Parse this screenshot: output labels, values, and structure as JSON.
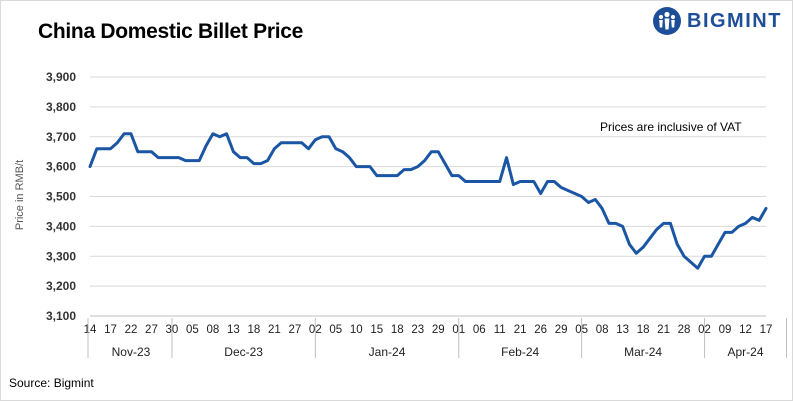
{
  "header": {
    "title": "China Domestic Billet Price",
    "logo_text": "BIGMINT"
  },
  "footer": {
    "source": "Source: Bigmint"
  },
  "colors": {
    "line": "#1a56a4",
    "brand": "#1f4e99",
    "grid": "#d9d9d9"
  },
  "icons": {
    "logo": "people-group-logo-icon"
  },
  "chart_data": {
    "type": "line",
    "title": "China Domestic Billet Price",
    "ylabel": "Price in RMB/t",
    "ylim": [
      3100,
      3900
    ],
    "yticks": [
      3100,
      3200,
      3300,
      3400,
      3500,
      3600,
      3700,
      3800,
      3900
    ],
    "ytick_labels": [
      "3,100",
      "3,200",
      "3,300",
      "3,400",
      "3,500",
      "3,600",
      "3,700",
      "3,800",
      "3,900"
    ],
    "grid": "horizontal",
    "annotation": "Prices are inclusive of VAT",
    "xtick_labels": [
      "14",
      "17",
      "22",
      "27",
      "30",
      "05",
      "08",
      "13",
      "18",
      "21",
      "27",
      "02",
      "05",
      "10",
      "15",
      "18",
      "23",
      "29",
      "01",
      "06",
      "11",
      "21",
      "26",
      "29",
      "05",
      "08",
      "13",
      "18",
      "21",
      "28",
      "02",
      "09",
      "12",
      "17"
    ],
    "months": [
      {
        "label": "Nov-23",
        "from_tick": 0,
        "to_tick": 4
      },
      {
        "label": "Dec-23",
        "from_tick": 4,
        "to_tick": 11
      },
      {
        "label": "Jan-24",
        "from_tick": 11,
        "to_tick": 18
      },
      {
        "label": "Feb-24",
        "from_tick": 18,
        "to_tick": 24
      },
      {
        "label": "Mar-24",
        "from_tick": 24,
        "to_tick": 30
      },
      {
        "label": "Apr-24",
        "from_tick": 30,
        "to_tick": 34
      }
    ],
    "series": [
      {
        "values": [
          3600,
          3660,
          3660,
          3660,
          3680,
          3710,
          3710,
          3650,
          3650,
          3650,
          3630,
          3630,
          3630,
          3630,
          3620,
          3620,
          3620,
          3670,
          3710,
          3700,
          3710,
          3650,
          3630,
          3630,
          3610,
          3610,
          3620,
          3660,
          3680,
          3680,
          3680,
          3680,
          3660,
          3690,
          3700,
          3700,
          3660,
          3650,
          3630,
          3600,
          3600,
          3600,
          3570,
          3570,
          3570,
          3570,
          3590,
          3590,
          3600,
          3620,
          3650,
          3650,
          3610,
          3570,
          3570,
          3550,
          3550,
          3550,
          3550,
          3550,
          3550,
          3630,
          3540,
          3550,
          3550,
          3550,
          3510,
          3550,
          3550,
          3530,
          3520,
          3510,
          3500,
          3480,
          3490,
          3460,
          3410,
          3410,
          3400,
          3340,
          3310,
          3330,
          3360,
          3390,
          3410,
          3410,
          3340,
          3300,
          3280,
          3260,
          3300,
          3300,
          3340,
          3380,
          3380,
          3400,
          3410,
          3430,
          3420,
          3460
        ]
      }
    ]
  }
}
